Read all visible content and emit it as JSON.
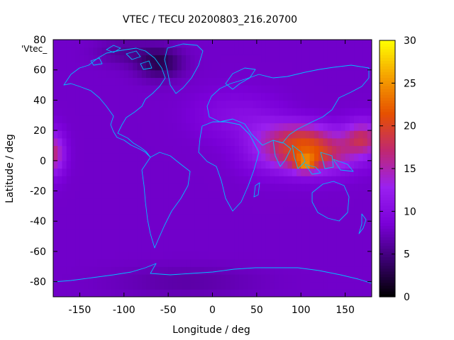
{
  "chart_data": {
    "type": "heatmap",
    "title": "VTEC / TECU 20200803_216.20700",
    "xlabel": "Longitude / deg",
    "ylabel": "Latitude / deg",
    "legend_key": "'Vtec_",
    "xlim": [
      -180,
      180
    ],
    "ylim": [
      -90,
      80
    ],
    "x_ticks": [
      -150,
      -100,
      -50,
      0,
      50,
      100,
      150
    ],
    "y_ticks": [
      -80,
      -60,
      -40,
      -20,
      0,
      20,
      40,
      60,
      80
    ],
    "colorbar": {
      "range": [
        0,
        30
      ],
      "ticks": [
        0,
        5,
        10,
        15,
        20,
        25,
        30
      ],
      "palette": [
        "#000000",
        "#3a0070",
        "#7a00d8",
        "#9a20f0",
        "#c02870",
        "#e65000",
        "#f5a000",
        "#ffff00"
      ]
    },
    "background_level": 8,
    "features": [
      {
        "lon": 110,
        "lat": 5,
        "sx": 45,
        "sy": 12,
        "value": 13
      },
      {
        "lon": 100,
        "lat": 18,
        "sx": 35,
        "sy": 9,
        "value": 6
      },
      {
        "lon": 170,
        "lat": 15,
        "sx": 22,
        "sy": 11,
        "value": 9
      },
      {
        "lon": -180,
        "lat": 5,
        "sx": 12,
        "sy": 13,
        "value": 9
      },
      {
        "lon": 105,
        "lat": -2,
        "sx": 12,
        "sy": 5,
        "value": 8
      },
      {
        "lon": 60,
        "lat": 15,
        "sx": 30,
        "sy": 18,
        "value": 3
      },
      {
        "lon": 20,
        "lat": 30,
        "sx": 40,
        "sy": 15,
        "value": 2
      },
      {
        "lon": -60,
        "lat": 65,
        "sx": 25,
        "sy": 10,
        "value": -5
      },
      {
        "lon": -100,
        "lat": 72,
        "sx": 30,
        "sy": 8,
        "value": -2
      },
      {
        "lon": -30,
        "lat": -80,
        "sx": 80,
        "sy": 10,
        "value": -1.5
      }
    ],
    "grid": false,
    "overlay": "world coastlines"
  }
}
